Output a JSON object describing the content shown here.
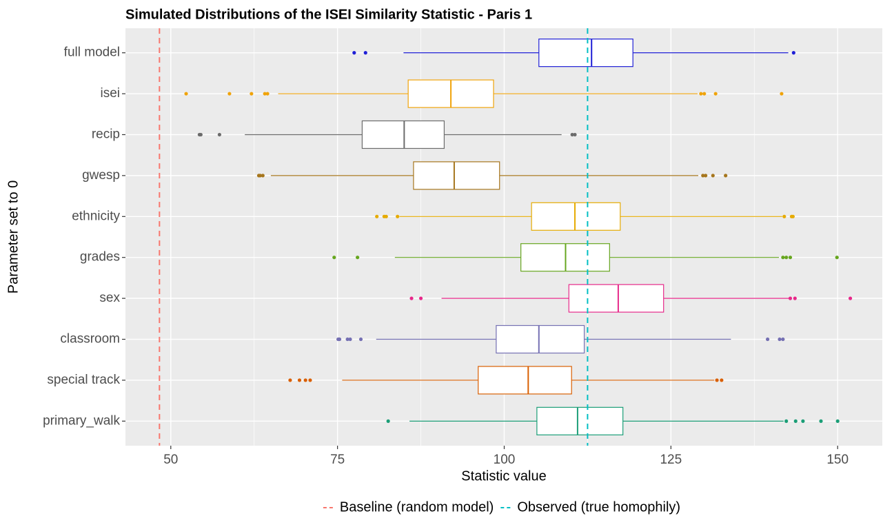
{
  "chart_data": {
    "type": "boxplot",
    "title": "Simulated Distributions of the ISEI Similarity Statistic - Paris 1",
    "x_label": "Statistic value",
    "y_label": "Parameter set to 0",
    "orientation": "horizontal",
    "grid": true,
    "xlim": [
      43.2,
      156.7
    ],
    "xticks": [
      50,
      75,
      100,
      125,
      150
    ],
    "categories": [
      "full model",
      "isei",
      "recip",
      "gwesp",
      "ethnicity",
      "grades",
      "sex",
      "classroom",
      "special track",
      "primary_walk"
    ],
    "boxes": [
      {
        "color": "#1f1fd6",
        "whisker_low": 84.9,
        "q1": 105.2,
        "median": 113.1,
        "q3": 119.3,
        "whisker_high": 142.6,
        "outliers": [
          77.5,
          79.2,
          143.4
        ]
      },
      {
        "color": "#f0a30a",
        "whisker_low": 66.1,
        "q1": 85.6,
        "median": 92.0,
        "q3": 98.4,
        "whisker_high": 129.0,
        "outliers": [
          52.3,
          58.8,
          62.1,
          64.1,
          64.5,
          129.5,
          130.0,
          131.7,
          141.6
        ]
      },
      {
        "color": "#6b6b6b",
        "whisker_low": 61.1,
        "q1": 78.7,
        "median": 85.0,
        "q3": 91.0,
        "whisker_high": 108.6,
        "outliers": [
          54.3,
          54.5,
          57.3,
          110.2,
          110.6
        ]
      },
      {
        "color": "#a6761d",
        "whisker_low": 65.0,
        "q1": 86.4,
        "median": 92.5,
        "q3": 99.3,
        "whisker_high": 129.1,
        "outliers": [
          63.2,
          63.4,
          63.8,
          129.8,
          130.2,
          131.3,
          133.2
        ]
      },
      {
        "color": "#e6ab02",
        "whisker_low": 84.3,
        "q1": 104.1,
        "median": 110.6,
        "q3": 117.4,
        "whisker_high": 141.7,
        "outliers": [
          80.9,
          82.0,
          82.3,
          84.0,
          142.0,
          143.1,
          143.3
        ]
      },
      {
        "color": "#66a61e",
        "whisker_low": 83.6,
        "q1": 102.5,
        "median": 109.2,
        "q3": 115.8,
        "whisker_high": 141.2,
        "outliers": [
          74.5,
          78.0,
          141.8,
          142.3,
          142.9,
          149.9
        ]
      },
      {
        "color": "#e7298a",
        "whisker_low": 90.6,
        "q1": 109.7,
        "median": 117.1,
        "q3": 123.9,
        "whisker_high": 142.7,
        "outliers": [
          86.1,
          87.5,
          142.9,
          143.6,
          151.9
        ]
      },
      {
        "color": "#7570b3",
        "whisker_low": 80.8,
        "q1": 98.8,
        "median": 105.2,
        "q3": 112.0,
        "whisker_high": 134.0,
        "outliers": [
          75.1,
          75.3,
          76.5,
          76.9,
          78.5,
          139.5,
          141.3,
          141.8
        ]
      },
      {
        "color": "#d95f02",
        "whisker_low": 75.7,
        "q1": 96.1,
        "median": 103.6,
        "q3": 110.1,
        "whisker_high": 131.5,
        "outliers": [
          67.9,
          69.3,
          70.2,
          70.9,
          131.9,
          132.6
        ]
      },
      {
        "color": "#1b9e77",
        "whisker_low": 85.8,
        "q1": 104.9,
        "median": 111.0,
        "q3": 117.8,
        "whisker_high": 141.9,
        "outliers": [
          82.6,
          142.3,
          143.7,
          144.8,
          147.5,
          150.0
        ]
      }
    ],
    "reference_lines": [
      {
        "name": "Baseline (random model)",
        "value": 48.3,
        "color": "#f8766d"
      },
      {
        "name": "Observed (true homophily)",
        "value": 112.5,
        "color": "#00bfc4"
      }
    ],
    "legend_position": "bottom"
  }
}
